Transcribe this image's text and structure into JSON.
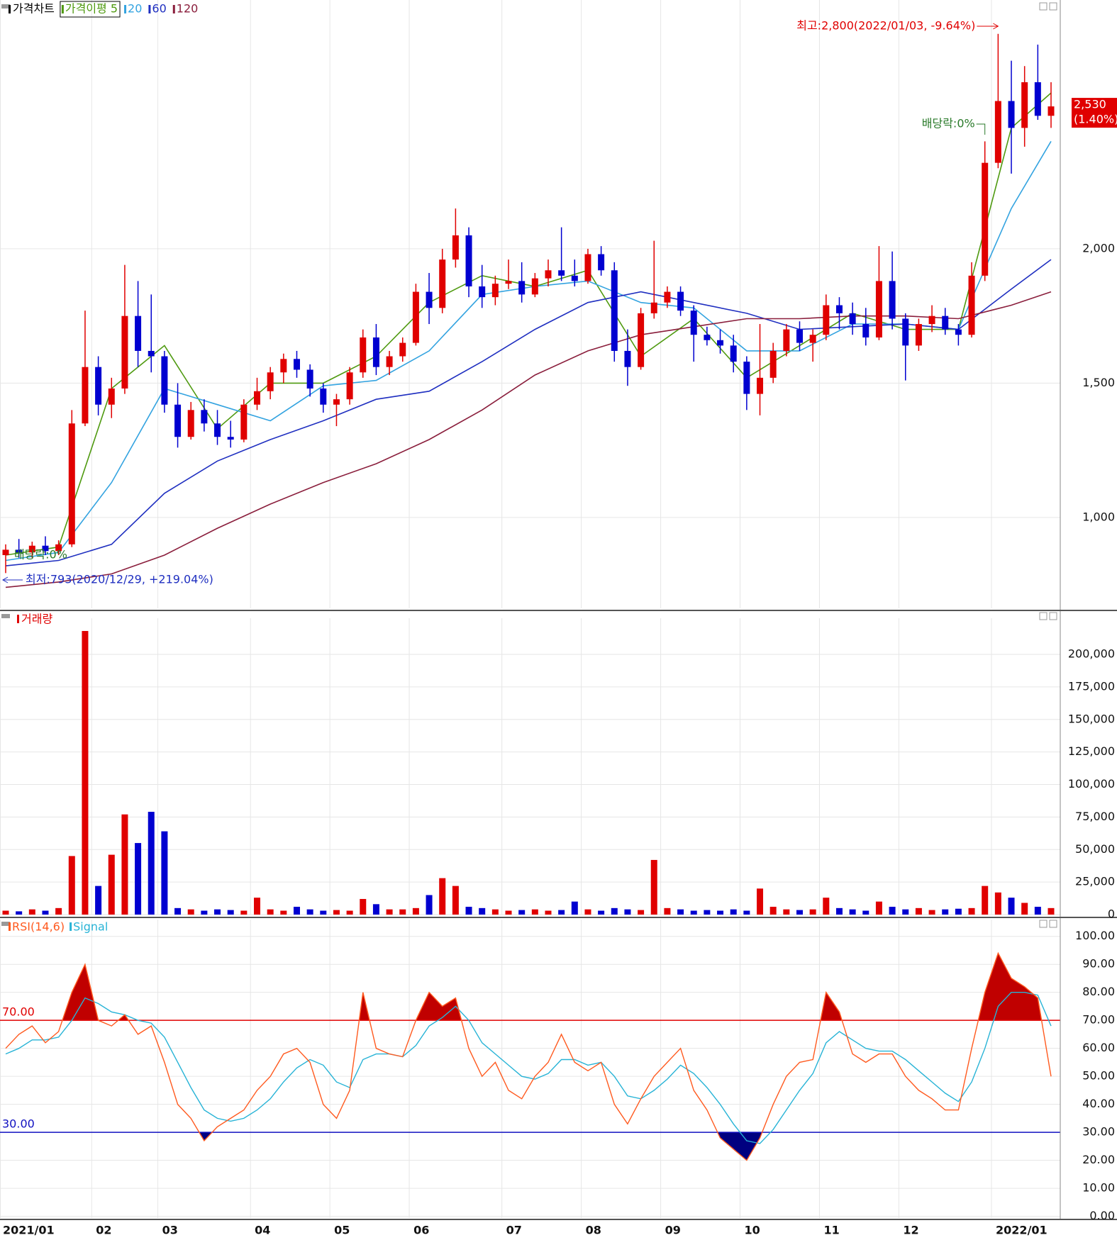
{
  "chart_data": [
    {
      "type": "candlestick",
      "legend_title": "가격차트",
      "categories": [
        "2021/01",
        null,
        null,
        null,
        null,
        null,
        null,
        "02",
        null,
        null,
        null,
        null,
        "03",
        null,
        null,
        null,
        null,
        null,
        null,
        "04",
        null,
        null,
        null,
        null,
        null,
        "05",
        null,
        null,
        null,
        null,
        null,
        "06",
        null,
        null,
        null,
        null,
        null,
        null,
        "07",
        null,
        null,
        null,
        null,
        null,
        "08",
        null,
        null,
        null,
        null,
        null,
        "09",
        null,
        null,
        null,
        null,
        null,
        "10",
        null,
        null,
        null,
        null,
        null,
        "11",
        null,
        null,
        null,
        null,
        null,
        "12",
        null,
        null,
        null,
        null,
        null,
        null,
        "2022/01",
        null,
        null,
        null,
        null
      ],
      "open": [
        860,
        880,
        870,
        895,
        875,
        900,
        1350,
        1560,
        1420,
        1480,
        1750,
        1620,
        1600,
        1420,
        1300,
        1400,
        1350,
        1300,
        1290,
        1420,
        1470,
        1540,
        1590,
        1550,
        1480,
        1420,
        1440,
        1540,
        1670,
        1560,
        1600,
        1650,
        1840,
        1780,
        1960,
        2050,
        1860,
        1820,
        1870,
        1880,
        1830,
        1890,
        1920,
        1900,
        1880,
        1980,
        1920,
        1620,
        1560,
        1760,
        1800,
        1840,
        1770,
        1680,
        1660,
        1640,
        1580,
        1460,
        1520,
        1620,
        1700,
        1650,
        1680,
        1790,
        1760,
        1720,
        1670,
        1880,
        1740,
        1640,
        1720,
        1750,
        1700,
        1680,
        1900,
        2320,
        2550,
        2450,
        2620,
        2495
      ],
      "high": [
        900,
        920,
        910,
        930,
        915,
        1400,
        1770,
        1600,
        1520,
        1940,
        1880,
        1830,
        1620,
        1500,
        1430,
        1440,
        1400,
        1360,
        1440,
        1520,
        1560,
        1610,
        1620,
        1570,
        1500,
        1460,
        1560,
        1700,
        1720,
        1620,
        1670,
        1870,
        1910,
        2000,
        2150,
        2080,
        1940,
        1900,
        1960,
        1950,
        1910,
        1960,
        2080,
        1960,
        2000,
        2010,
        1950,
        1700,
        1780,
        2030,
        1860,
        1860,
        1790,
        1710,
        1700,
        1680,
        1600,
        1720,
        1650,
        1720,
        1730,
        1700,
        1830,
        1820,
        1800,
        1780,
        2010,
        1990,
        1760,
        1740,
        1790,
        1780,
        1720,
        1950,
        2400,
        2800,
        2700,
        2680,
        2760,
        2620
      ],
      "low": [
        793,
        850,
        850,
        860,
        860,
        890,
        1340,
        1380,
        1370,
        1460,
        1560,
        1540,
        1390,
        1260,
        1290,
        1320,
        1270,
        1260,
        1280,
        1400,
        1440,
        1500,
        1520,
        1450,
        1390,
        1340,
        1420,
        1520,
        1530,
        1530,
        1580,
        1640,
        1720,
        1760,
        1930,
        1820,
        1780,
        1790,
        1850,
        1800,
        1820,
        1860,
        1880,
        1860,
        1870,
        1900,
        1580,
        1490,
        1550,
        1740,
        1780,
        1750,
        1580,
        1640,
        1610,
        1540,
        1400,
        1380,
        1500,
        1600,
        1620,
        1580,
        1660,
        1700,
        1680,
        1640,
        1660,
        1700,
        1510,
        1620,
        1690,
        1680,
        1640,
        1670,
        1880,
        2300,
        2280,
        2380,
        2480,
        2450
      ],
      "close": [
        880,
        870,
        895,
        875,
        900,
        1350,
        1560,
        1420,
        1480,
        1750,
        1620,
        1600,
        1420,
        1300,
        1400,
        1350,
        1300,
        1290,
        1420,
        1470,
        1540,
        1590,
        1550,
        1480,
        1420,
        1440,
        1540,
        1670,
        1560,
        1600,
        1650,
        1840,
        1780,
        1960,
        2050,
        1860,
        1820,
        1870,
        1880,
        1830,
        1890,
        1920,
        1900,
        1880,
        1980,
        1920,
        1620,
        1560,
        1760,
        1800,
        1840,
        1770,
        1680,
        1660,
        1640,
        1580,
        1460,
        1520,
        1620,
        1700,
        1650,
        1680,
        1790,
        1760,
        1720,
        1670,
        1880,
        1740,
        1640,
        1720,
        1750,
        1700,
        1680,
        1900,
        2320,
        2550,
        2450,
        2620,
        2495,
        2530
      ],
      "up_color": "#e00000",
      "down_color": "#0000d0",
      "ylim": [
        662,
        2926
      ],
      "yticks": [
        {
          "value": 1000,
          "label": "1,000"
        },
        {
          "value": 1500,
          "label": "1,500"
        },
        {
          "value": 2000,
          "label": "2,000"
        }
      ],
      "grid": true,
      "series": [
        {
          "name": "가격이평 5",
          "color": "#4f9a10",
          "x": [
            0,
            4,
            8,
            12,
            16,
            20,
            24,
            28,
            32,
            36,
            40,
            44,
            48,
            52,
            56,
            60,
            64,
            68,
            72,
            76,
            79
          ],
          "values": [
            860,
            890,
            1480,
            1640,
            1330,
            1500,
            1500,
            1600,
            1800,
            1900,
            1860,
            1920,
            1600,
            1740,
            1520,
            1640,
            1760,
            1700,
            1700,
            2450,
            2580
          ]
        },
        {
          "name": "20",
          "color": "#33a3e0",
          "x": [
            0,
            4,
            8,
            12,
            16,
            20,
            24,
            28,
            32,
            36,
            40,
            44,
            48,
            52,
            56,
            60,
            64,
            68,
            72,
            76,
            79
          ],
          "values": [
            840,
            870,
            1130,
            1480,
            1420,
            1360,
            1490,
            1510,
            1620,
            1830,
            1860,
            1880,
            1800,
            1780,
            1620,
            1620,
            1720,
            1720,
            1700,
            2150,
            2400
          ]
        },
        {
          "name": "60",
          "color": "#1f2fc0",
          "x": [
            0,
            4,
            8,
            12,
            16,
            20,
            24,
            28,
            32,
            36,
            40,
            44,
            48,
            52,
            56,
            60,
            64,
            68,
            72,
            76,
            79
          ],
          "values": [
            820,
            840,
            900,
            1090,
            1210,
            1290,
            1360,
            1440,
            1470,
            1580,
            1700,
            1800,
            1840,
            1800,
            1760,
            1700,
            1710,
            1720,
            1700,
            1850,
            1960
          ]
        },
        {
          "name": "120",
          "color": "#8a1e3c",
          "x": [
            0,
            4,
            8,
            12,
            16,
            20,
            24,
            28,
            32,
            36,
            40,
            44,
            48,
            52,
            56,
            60,
            64,
            68,
            72,
            76,
            79
          ],
          "values": [
            740,
            760,
            790,
            860,
            960,
            1050,
            1130,
            1200,
            1290,
            1400,
            1530,
            1620,
            1680,
            1710,
            1740,
            1740,
            1750,
            1750,
            1740,
            1790,
            1840
          ]
        }
      ],
      "annotations": [
        {
          "text": "최고:2,800(2022/01/03, -9.64%)",
          "color": "#e00000"
        },
        {
          "text": "최저:793(2020/12/29, +219.04%)",
          "color": "#1f2fc0"
        },
        {
          "text": "배당락:0%",
          "color": "#2a7a2a"
        },
        {
          "text": "배당락:0%",
          "color": "#2a7a2a"
        }
      ],
      "last_price": {
        "value": 2530,
        "label": "2,530"
      },
      "last_change": "(1.40%)"
    },
    {
      "type": "bar",
      "title": "거래량",
      "values": [
        3000,
        2500,
        4000,
        3000,
        5000,
        45000,
        218000,
        22000,
        46000,
        77000,
        55000,
        79000,
        64000,
        5000,
        4000,
        3000,
        4000,
        3500,
        3000,
        13000,
        4000,
        3000,
        6000,
        4000,
        3000,
        3500,
        3000,
        12000,
        8000,
        4000,
        4000,
        5000,
        15000,
        28000,
        22000,
        6000,
        5000,
        4000,
        3000,
        3500,
        4000,
        3000,
        3500,
        10000,
        4000,
        3000,
        5000,
        4000,
        3500,
        42000,
        5000,
        4000,
        3000,
        3500,
        3000,
        4000,
        3000,
        20000,
        6000,
        4000,
        3500,
        4000,
        13000,
        5000,
        4000,
        3000,
        10000,
        6000,
        4000,
        5000,
        3500,
        4000,
        4500,
        5000,
        22000,
        17000,
        13000,
        9000,
        6000,
        5000
      ],
      "ylim": [
        0,
        227800
      ],
      "yticks": [
        0,
        {
          "value": 25000,
          "label": "25,000"
        },
        {
          "value": 50000,
          "label": "50,000"
        },
        {
          "value": 75000,
          "label": "75,000"
        },
        {
          "value": 100000,
          "label": "100,000"
        },
        {
          "value": 125000,
          "label": "125,000"
        },
        {
          "value": 150000,
          "label": "150,000"
        },
        {
          "value": 175000,
          "label": "175,000"
        },
        {
          "value": 200000,
          "label": "200,000"
        }
      ],
      "grid": true
    },
    {
      "type": "line",
      "series": [
        {
          "name": "RSI(14,6)",
          "color": "#ff5a1f",
          "values": [
            60,
            65,
            68,
            62,
            66,
            80,
            90,
            70,
            68,
            72,
            65,
            68,
            55,
            40,
            35,
            27,
            32,
            35,
            38,
            45,
            50,
            58,
            60,
            55,
            40,
            35,
            45,
            80,
            60,
            58,
            57,
            70,
            80,
            75,
            78,
            60,
            50,
            55,
            45,
            42,
            50,
            55,
            65,
            55,
            52,
            55,
            40,
            33,
            42,
            50,
            55,
            60,
            45,
            38,
            28,
            24,
            20,
            28,
            40,
            50,
            55,
            56,
            80,
            73,
            58,
            55,
            58,
            58,
            50,
            45,
            42,
            38,
            38,
            60,
            80,
            94,
            85,
            82,
            78,
            50
          ]
        },
        {
          "name": "Signal",
          "color": "#27b3d6",
          "values": [
            58,
            60,
            63,
            63,
            64,
            70,
            78,
            76,
            73,
            72,
            70,
            69,
            64,
            55,
            46,
            38,
            35,
            34,
            35,
            38,
            42,
            48,
            53,
            56,
            54,
            48,
            46,
            56,
            58,
            58,
            57,
            61,
            68,
            71,
            75,
            70,
            62,
            58,
            54,
            50,
            49,
            51,
            56,
            56,
            54,
            55,
            50,
            43,
            42,
            45,
            49,
            54,
            51,
            46,
            40,
            33,
            27,
            26,
            31,
            38,
            45,
            51,
            62,
            66,
            63,
            60,
            59,
            59,
            56,
            52,
            48,
            44,
            41,
            48,
            60,
            75,
            80,
            80,
            79,
            68
          ]
        }
      ],
      "ylim": [
        -0.6,
        106
      ],
      "yticks": [
        {
          "value": 0,
          "label": "0.00"
        },
        {
          "value": 10,
          "label": "10.00"
        },
        {
          "value": 20,
          "label": "20.00"
        },
        {
          "value": 30,
          "label": "30.00"
        },
        {
          "value": 40,
          "label": "40.00"
        },
        {
          "value": 50,
          "label": "50.00"
        },
        {
          "value": 60,
          "label": "60.00"
        },
        {
          "value": 70,
          "label": "70.00"
        },
        {
          "value": 80,
          "label": "80.00"
        },
        {
          "value": 90,
          "label": "90.00"
        },
        {
          "value": 100,
          "label": "100.00"
        }
      ],
      "hlines": [
        {
          "value": 70,
          "label": "70.00",
          "color": "#e00000"
        },
        {
          "value": 30,
          "label": "30.00",
          "color": "#1010c0"
        }
      ],
      "upper_fill": "#c00000",
      "lower_fill": "#000080",
      "grid": true
    }
  ]
}
